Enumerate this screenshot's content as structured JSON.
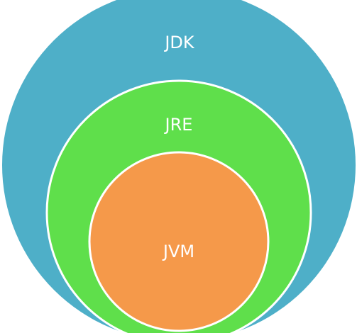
{
  "diagram": {
    "layers": [
      {
        "id": "jdk",
        "label": "JDK",
        "color": "#4eafc8"
      },
      {
        "id": "jre",
        "label": "JRE",
        "color": "#5fdf4b"
      },
      {
        "id": "jvm",
        "label": "JVM",
        "color": "#f5994a"
      }
    ],
    "outline_color": "#ffffff"
  }
}
